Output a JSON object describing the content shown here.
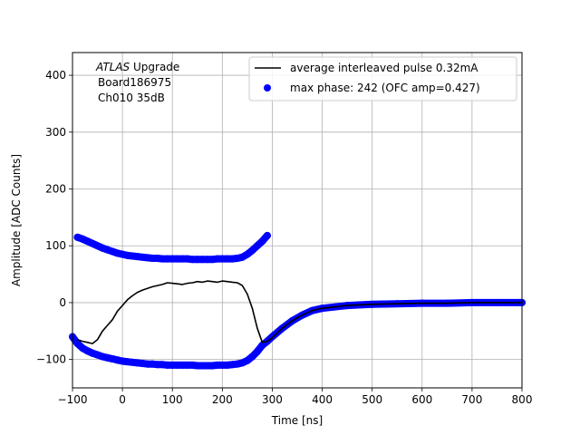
{
  "chart_data": {
    "type": "scatter",
    "xlabel": "Time [ns]",
    "ylabel": "Amplitude [ADC Counts]",
    "xlim": [
      -100,
      800
    ],
    "ylim": [
      -150,
      440
    ],
    "xticks": [
      -100,
      0,
      100,
      200,
      300,
      400,
      500,
      600,
      700,
      800
    ],
    "yticks": [
      -100,
      0,
      100,
      200,
      300,
      400
    ],
    "grid": true,
    "legend_position": "top-right",
    "annotation": {
      "line1_italic": "ATLAS",
      "line1_rest": " Upgrade",
      "line2": "Board186975",
      "line3": "Ch010 35dB"
    },
    "series": [
      {
        "name": "average interleaved pulse 0.32mA",
        "kind": "line",
        "color": "#000000",
        "x": [
          -90,
          -80,
          -70,
          -60,
          -50,
          -40,
          -30,
          -20,
          -10,
          0,
          10,
          20,
          30,
          40,
          50,
          60,
          70,
          80,
          90,
          100,
          110,
          120,
          130,
          140,
          150,
          160,
          170,
          180,
          190,
          200,
          210,
          220,
          230,
          240,
          250,
          260,
          270,
          280,
          290,
          300,
          320,
          340,
          360,
          380,
          400,
          450,
          500,
          550,
          600,
          650,
          700,
          750,
          800
        ],
        "y": [
          -65,
          -68,
          -70,
          -72,
          -65,
          -50,
          -40,
          -30,
          -15,
          -5,
          5,
          12,
          18,
          22,
          25,
          28,
          30,
          32,
          35,
          34,
          33,
          32,
          34,
          35,
          37,
          36,
          38,
          37,
          36,
          38,
          37,
          36,
          35,
          30,
          15,
          -10,
          -45,
          -70,
          -68,
          -62,
          -45,
          -32,
          -22,
          -14,
          -10,
          -5,
          -3,
          -2,
          -1,
          -1,
          0,
          0,
          0
        ]
      },
      {
        "name": "max phase: 242 (OFC amp=0.427)",
        "kind": "scatter",
        "color": "#0000ff",
        "segments": [
          {
            "x": [
              -90,
              -80,
              -70,
              -60,
              -50,
              -40,
              -30,
              -20,
              -10,
              0,
              10,
              20,
              30,
              40,
              50,
              60,
              70,
              80,
              90,
              100,
              110,
              120,
              130,
              140,
              150,
              160,
              170,
              180,
              190,
              200,
              210,
              220,
              230,
              240,
              250,
              260,
              270,
              280,
              290
            ],
            "y": [
              115,
              112,
              108,
              104,
              100,
              96,
              93,
              90,
              87,
              85,
              83,
              82,
              81,
              80,
              79,
              78,
              78,
              77,
              77,
              77,
              77,
              77,
              77,
              76,
              76,
              76,
              76,
              76,
              77,
              77,
              77,
              77,
              78,
              80,
              85,
              92,
              100,
              108,
              118
            ]
          },
          {
            "x": [
              -100,
              -90,
              -80,
              -70,
              -60,
              -50,
              -40,
              -30,
              -20,
              -10,
              0,
              10,
              20,
              30,
              40,
              50,
              60,
              70,
              80,
              90,
              100,
              110,
              120,
              130,
              140,
              150,
              160,
              170,
              180,
              190,
              200,
              210,
              220,
              230,
              240,
              250,
              260,
              270,
              280,
              290,
              300,
              320,
              340,
              360,
              380,
              400,
              450,
              500,
              550,
              600,
              650,
              700,
              750,
              800
            ],
            "y": [
              -60,
              -72,
              -80,
              -85,
              -89,
              -92,
              -95,
              -97,
              -99,
              -101,
              -103,
              -104,
              -105,
              -106,
              -107,
              -108,
              -108,
              -109,
              -109,
              -110,
              -110,
              -110,
              -110,
              -110,
              -110,
              -111,
              -111,
              -111,
              -111,
              -110,
              -110,
              -110,
              -109,
              -108,
              -106,
              -102,
              -95,
              -86,
              -75,
              -68,
              -60,
              -45,
              -32,
              -22,
              -14,
              -10,
              -5,
              -3,
              -2,
              -1,
              -1,
              0,
              0,
              0
            ]
          }
        ]
      }
    ]
  }
}
